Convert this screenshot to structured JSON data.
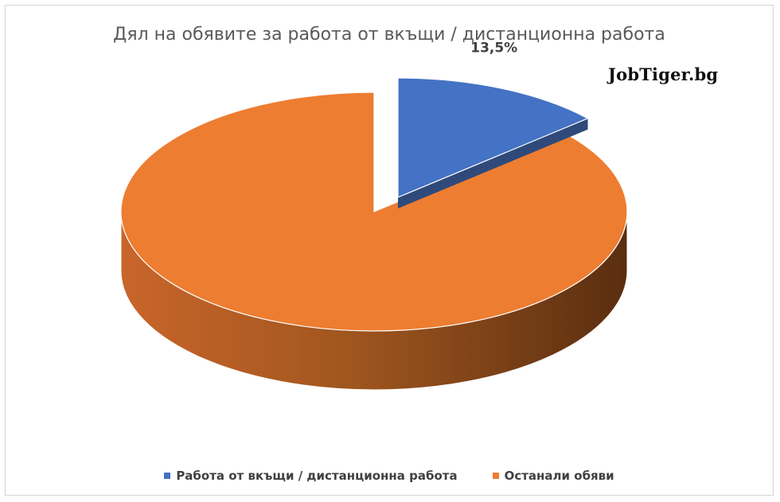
{
  "chart_data": {
    "type": "pie",
    "title": "Дял на обявите за работа от вкъщи / дистанционна работа",
    "watermark": "JobTiger.bg",
    "slices": [
      {
        "name": "Работа от вкъщи / дистанционна работа",
        "value": 13.5,
        "label": "13,5%",
        "color": "#4472C4",
        "exploded": true
      },
      {
        "name": "Останали обяви",
        "value": 86.5,
        "label": "",
        "color": "#ED7D31",
        "exploded": false
      }
    ],
    "legend_position": "bottom",
    "three_d": true
  }
}
